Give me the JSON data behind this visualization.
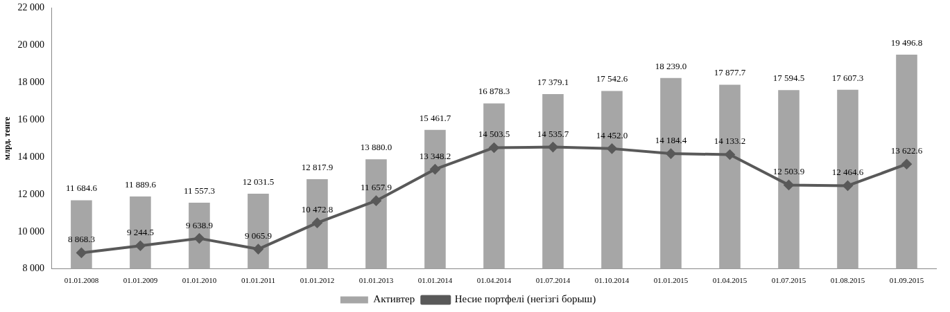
{
  "chart_data": {
    "type": "bar",
    "ylabel": "млрд. тенге",
    "categories": [
      "01.01.2008",
      "01.01.2009",
      "01.01.2010",
      "01.01.2011",
      "01.01.2012",
      "01.01.2013",
      "01.01.2014",
      "01.04.2014",
      "01.07.2014",
      "01.10.2014",
      "01.01.2015",
      "01.04.2015",
      "01.07.2015",
      "01.08.2015",
      "01.09.2015"
    ],
    "series": [
      {
        "name": "Активтер",
        "color": "#a6a6a6",
        "values": [
          11684.6,
          11889.6,
          11557.3,
          12031.5,
          12817.9,
          13880.0,
          15461.7,
          16878.3,
          17379.1,
          17542.6,
          18239.0,
          17877.7,
          17594.5,
          17607.3,
          19496.8
        ],
        "value_labels": [
          "11 684.6",
          "11 889.6",
          "11 557.3",
          "12 031.5",
          "12 817.9",
          "13 880.0",
          "15 461.7",
          "16 878.3",
          "17 379.1",
          "17 542.6",
          "18 239.0",
          "17 877.7",
          "17 594.5",
          "17 607.3",
          "19 496.8"
        ]
      },
      {
        "name": "Несие портфелі (негізгі борыш)",
        "type": "line",
        "color": "#595959",
        "marker": "diamond",
        "values": [
          8868.3,
          9244.5,
          9638.9,
          9065.9,
          10472.8,
          11657.9,
          13348.2,
          14503.5,
          14535.7,
          14452.0,
          14184.4,
          14133.2,
          12503.9,
          12464.6,
          13622.6
        ],
        "value_labels": [
          "8 868.3",
          "9 244.5",
          "9 638.9",
          "9 065.9",
          "10 472.8",
          "11 657.9",
          "13 348.2",
          "14 503.5",
          "14 535.7",
          "14 452.0",
          "14 184.4",
          "14 133.2",
          "12 503.9",
          "12 464.6",
          "13 622.6"
        ]
      }
    ],
    "ylim": [
      8000,
      22000
    ],
    "yticks": [
      {
        "value": 8000,
        "label": "8 000"
      },
      {
        "value": 10000,
        "label": "10 000"
      },
      {
        "value": 12000,
        "label": "12 000"
      },
      {
        "value": 14000,
        "label": "14 000"
      },
      {
        "value": 16000,
        "label": "16 000"
      },
      {
        "value": 18000,
        "label": "18 000"
      },
      {
        "value": 20000,
        "label": "20 000"
      },
      {
        "value": 22000,
        "label": "22 000"
      }
    ],
    "grid": false,
    "legend": "bottom"
  }
}
